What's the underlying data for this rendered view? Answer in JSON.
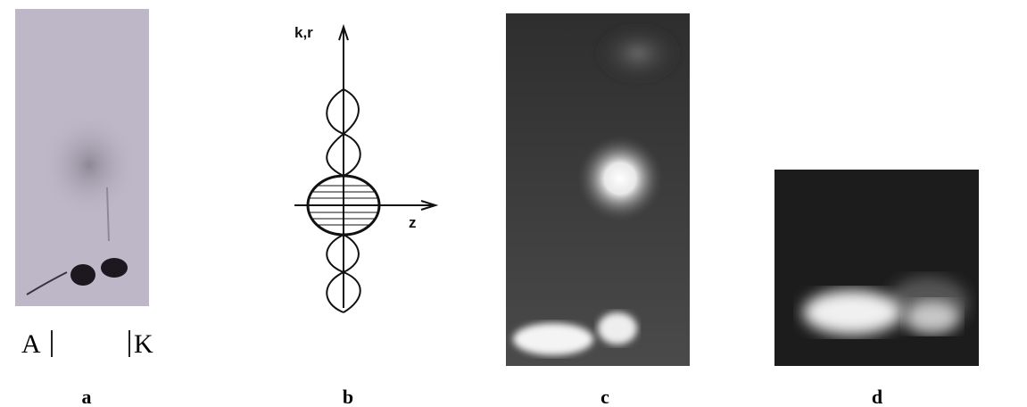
{
  "panels": [
    {
      "label": "a",
      "annotations": [
        "A",
        "K"
      ]
    },
    {
      "label": "b",
      "axis_labels": [
        "k,r",
        "z"
      ]
    },
    {
      "label": "c"
    },
    {
      "label": "d"
    }
  ]
}
